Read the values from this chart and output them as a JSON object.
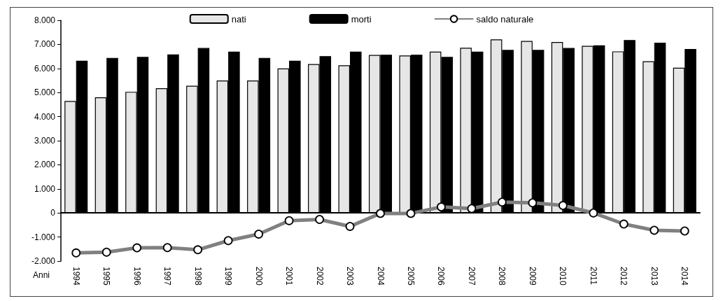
{
  "chart_data": {
    "type": "bar",
    "xlabel": "Anni",
    "categories": [
      "1994",
      "1995",
      "1996",
      "1997",
      "1998",
      "1999",
      "2000",
      "2001",
      "2002",
      "2003",
      "2004",
      "2005",
      "2006",
      "2007",
      "2008",
      "2009",
      "2010",
      "2011",
      "2012",
      "2013",
      "2014"
    ],
    "series": [
      {
        "name": "nati",
        "color": "#e6e6e6",
        "values": [
          4650,
          4800,
          5030,
          5180,
          5280,
          5500,
          5500,
          6000,
          6180,
          6130,
          6560,
          6540,
          6700,
          6860,
          7210,
          7140,
          7100,
          6940,
          6710,
          6300,
          6030
        ]
      },
      {
        "name": "morti",
        "color": "#000000",
        "values": [
          6320,
          6440,
          6480,
          6580,
          6850,
          6700,
          6440,
          6320,
          6510,
          6700,
          6570,
          6570,
          6480,
          6700,
          6770,
          6770,
          6850,
          6960,
          7180,
          7070,
          6810
        ]
      },
      {
        "name": "saldo naturale",
        "type": "line",
        "color": "#808080",
        "marker": "circle",
        "values": [
          -1660,
          -1630,
          -1450,
          -1440,
          -1530,
          -1150,
          -880,
          -320,
          -270,
          -560,
          -20,
          -20,
          250,
          180,
          450,
          420,
          310,
          0,
          -460,
          -720,
          -750
        ]
      }
    ],
    "ylim": [
      -2000,
      8000
    ],
    "yticks": [
      {
        "value": -2000,
        "label": "-2.000"
      },
      {
        "value": -1000,
        "label": "-1.000"
      },
      0,
      {
        "value": 1000,
        "label": "1.000"
      },
      {
        "value": 2000,
        "label": "2.000"
      },
      {
        "value": 3000,
        "label": "3.000"
      },
      {
        "value": 4000,
        "label": "4.000"
      },
      {
        "value": 5000,
        "label": "5.000"
      },
      {
        "value": 6000,
        "label": "6.000"
      },
      {
        "value": 7000,
        "label": "7.000"
      },
      {
        "value": 8000,
        "label": "8.000"
      }
    ],
    "legend": "top"
  }
}
